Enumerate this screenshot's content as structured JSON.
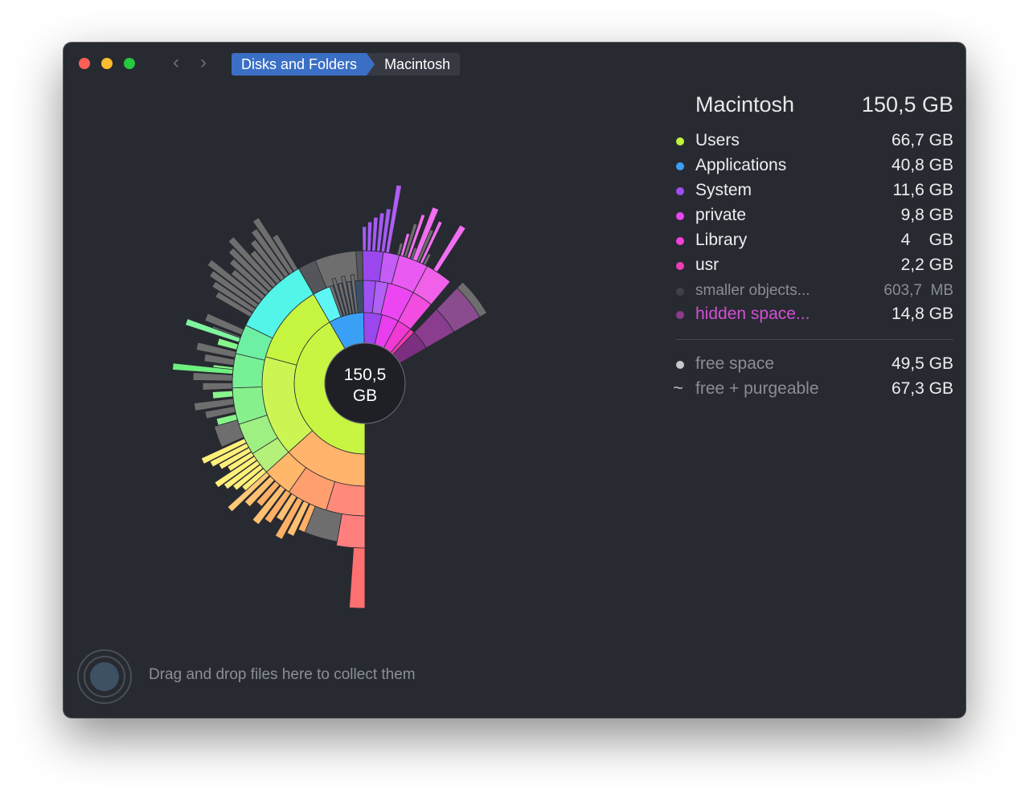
{
  "window": {
    "breadcrumb": [
      "Disks and Folders",
      "Macintosh"
    ],
    "nav_back_icon": "chevron-left-icon",
    "nav_forward_icon": "chevron-right-icon"
  },
  "sunburst": {
    "center_value": "150,5",
    "center_unit": "GB"
  },
  "legend": {
    "title": "Macintosh",
    "total": "150,5 GB",
    "items": [
      {
        "label": "Users",
        "size": "66,7 GB",
        "color": "#c0f43c"
      },
      {
        "label": "Applications",
        "size": "40,8 GB",
        "color": "#3aa0f5"
      },
      {
        "label": "System",
        "size": "11,6 GB",
        "color": "#a04cf0"
      },
      {
        "label": "private",
        "size": "9,8 GB",
        "color": "#e844f0"
      },
      {
        "label": "Library",
        "size": "4    GB",
        "color": "#f040d8"
      },
      {
        "label": "usr",
        "size": "2,2 GB",
        "color": "#f03cb4"
      },
      {
        "label": "smaller objects...",
        "size": "603,7  MB",
        "color": "#3f4148"
      },
      {
        "label": "hidden space...",
        "size": "14,8 GB",
        "color": "#8a3c8e"
      }
    ],
    "free_space": {
      "label": "free space",
      "size": "49,5 GB",
      "color": "#c8c8cc"
    },
    "free_purgeable": {
      "label": "free + purgeable",
      "size": "67,3 GB",
      "symbol": "~"
    }
  },
  "drop_zone": {
    "text": "Drag and drop files here to collect them",
    "icon": "collector-icon"
  }
}
